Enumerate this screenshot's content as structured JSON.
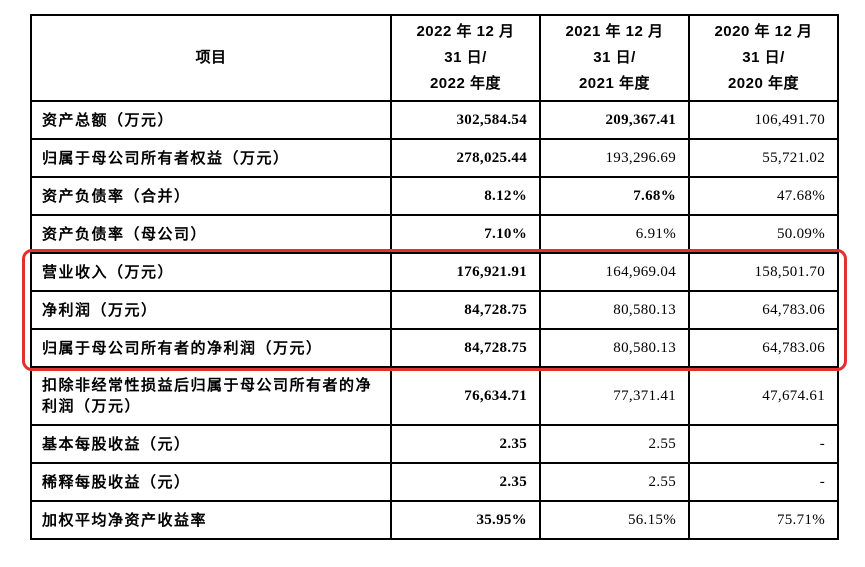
{
  "table": {
    "header": {
      "item_label": "项目",
      "columns": [
        "2022 年 12 月\n31 日/\n2022 年度",
        "2021 年 12 月\n31 日/\n2021 年度",
        "2020 年 12 月\n31 日/\n2020 年度"
      ]
    },
    "rows": [
      {
        "item": "资产总额（万元）",
        "values": [
          "302,584.54",
          "209,367.41",
          "106,491.70"
        ],
        "bold": [
          true,
          true,
          false
        ],
        "highlighted": false,
        "tall": false
      },
      {
        "item": "归属于母公司所有者权益（万元）",
        "values": [
          "278,025.44",
          "193,296.69",
          "55,721.02"
        ],
        "bold": [
          true,
          false,
          false
        ],
        "highlighted": false,
        "tall": false
      },
      {
        "item": "资产负债率（合并）",
        "values": [
          "8.12%",
          "7.68%",
          "47.68%"
        ],
        "bold": [
          true,
          true,
          false
        ],
        "highlighted": false,
        "tall": false
      },
      {
        "item": "资产负债率（母公司）",
        "values": [
          "7.10%",
          "6.91%",
          "50.09%"
        ],
        "bold": [
          true,
          false,
          false
        ],
        "highlighted": false,
        "tall": false
      },
      {
        "item": "营业收入（万元）",
        "values": [
          "176,921.91",
          "164,969.04",
          "158,501.70"
        ],
        "bold": [
          true,
          false,
          false
        ],
        "highlighted": true,
        "tall": false
      },
      {
        "item": "净利润（万元）",
        "values": [
          "84,728.75",
          "80,580.13",
          "64,783.06"
        ],
        "bold": [
          true,
          false,
          false
        ],
        "highlighted": true,
        "tall": false
      },
      {
        "item": "归属于母公司所有者的净利润（万元）",
        "values": [
          "84,728.75",
          "80,580.13",
          "64,783.06"
        ],
        "bold": [
          true,
          false,
          false
        ],
        "highlighted": true,
        "tall": false
      },
      {
        "item": "扣除非经常性损益后归属于母公司所有者的净利润（万元）",
        "values": [
          "76,634.71",
          "77,371.41",
          "47,674.61"
        ],
        "bold": [
          true,
          false,
          false
        ],
        "highlighted": false,
        "tall": true
      },
      {
        "item": "基本每股收益（元）",
        "values": [
          "2.35",
          "2.55",
          "-"
        ],
        "bold": [
          true,
          false,
          false
        ],
        "highlighted": false,
        "tall": false
      },
      {
        "item": "稀释每股收益（元）",
        "values": [
          "2.35",
          "2.55",
          "-"
        ],
        "bold": [
          true,
          false,
          false
        ],
        "highlighted": false,
        "tall": false
      },
      {
        "item": "加权平均净资产收益率",
        "values": [
          "35.95%",
          "56.15%",
          "75.71%"
        ],
        "bold": [
          true,
          false,
          false
        ],
        "highlighted": false,
        "tall": false
      }
    ]
  },
  "highlight": {
    "color": "#e0312f"
  }
}
